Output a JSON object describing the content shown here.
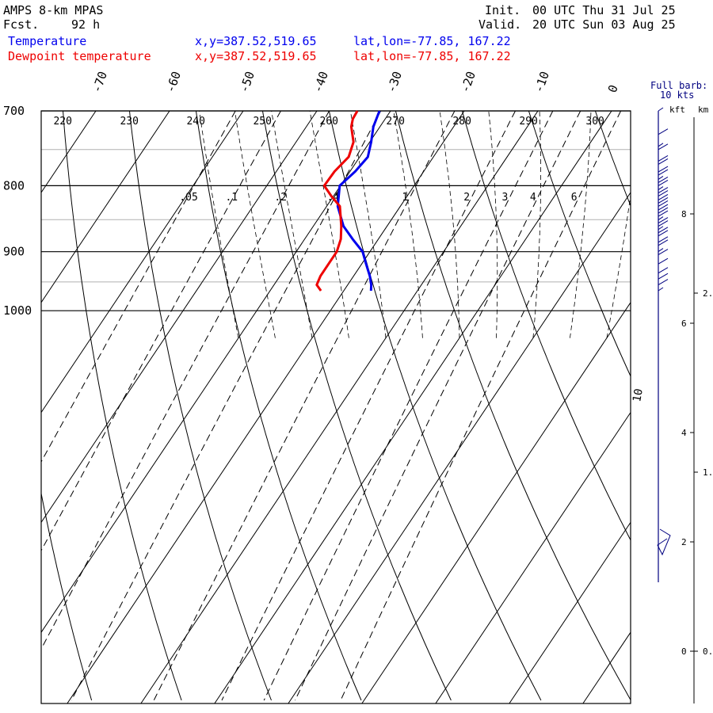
{
  "header": {
    "model": "AMPS 8-km MPAS",
    "fcst_label": "Fcst.",
    "fcst_value": "92 h",
    "init_label": "Init.",
    "init_value": "00 UTC Thu 31 Jul 25",
    "valid_label": "Valid.",
    "valid_value": "20 UTC Sun 03 Aug 25"
  },
  "colors": {
    "temperature": "#0000ee",
    "dewpoint": "#ee0000",
    "grid": "#000000",
    "minor_grid": "#b0b0b0"
  },
  "chart_data": {
    "type": "line",
    "chart_kind": "skew-T log-p sounding",
    "pressure_range_hpa": [
      700,
      1050
    ],
    "log_pressure": true,
    "isobar_labels": [
      "700",
      "800",
      "900",
      "1000"
    ],
    "isotherm_labels_c": [
      "-70",
      "-60",
      "-50",
      "-40",
      "-30",
      "-20",
      "-10",
      "0"
    ],
    "dry_adiabat_labels_k": [
      "220",
      "230",
      "240",
      "250",
      "260",
      "270",
      "280",
      "290",
      "300"
    ],
    "mixing_ratio_labels": [
      ".05",
      ".1",
      ".2",
      ".4",
      "1",
      "2",
      "3",
      "4",
      "6"
    ],
    "mixing_ratio_values_gkg": [
      0.05,
      0.1,
      0.2,
      0.4,
      1,
      2,
      3,
      4,
      6
    ],
    "pseudoadiabat_label": "10",
    "series": [
      {
        "name": "Temperature",
        "location_xy": "x,y=387.52,519.65",
        "location_latlon": "lat,lon=-77.85, 167.22",
        "p": [
          700,
          720,
          740,
          760,
          780,
          800,
          830,
          860,
          880,
          900,
          920,
          940,
          955,
          965
        ],
        "t": [
          -31.5,
          -30.9,
          -29.8,
          -28.9,
          -29.3,
          -30.1,
          -28.5,
          -25.9,
          -23.5,
          -21.0,
          -19.4,
          -17.8,
          -16.8,
          -16.3
        ]
      },
      {
        "name": "Dewpoint temperature",
        "location_xy": "x,y=387.52,519.65",
        "location_latlon": "lat,lon=-77.85, 167.22",
        "p": [
          700,
          710,
          720,
          740,
          760,
          780,
          800,
          815,
          830,
          860,
          880,
          900,
          920,
          940,
          955,
          965
        ],
        "t": [
          -34.5,
          -34.4,
          -33.9,
          -32.2,
          -31.5,
          -32.1,
          -32.2,
          -30.3,
          -28.2,
          -26.2,
          -25.1,
          -24.5,
          -24.5,
          -24.5,
          -24.2,
          -23.1
        ]
      }
    ],
    "wind_panel": {
      "legend_line1": "Full barb:",
      "legend_line2": "10 kts",
      "kft_label": "kft",
      "km_label": "km",
      "kft_labels": [
        "0",
        "2",
        "4",
        "6",
        "8"
      ],
      "kft_values": [
        0,
        2,
        4,
        6,
        8
      ],
      "km_labels": [
        "0.",
        "1.",
        "2."
      ],
      "km_values": [
        0,
        1,
        2
      ],
      "barbs": [
        {
          "p": 700,
          "speed_kt": 5
        },
        {
          "p": 730,
          "speed_kt": 10
        },
        {
          "p": 750,
          "speed_kt": 15
        },
        {
          "p": 770,
          "speed_kt": 20
        },
        {
          "p": 785,
          "speed_kt": 20
        },
        {
          "p": 800,
          "speed_kt": 25
        },
        {
          "p": 815,
          "speed_kt": 25
        },
        {
          "p": 830,
          "speed_kt": 30
        },
        {
          "p": 845,
          "speed_kt": 30
        },
        {
          "p": 860,
          "speed_kt": 25
        },
        {
          "p": 875,
          "speed_kt": 25
        },
        {
          "p": 890,
          "speed_kt": 20
        },
        {
          "p": 905,
          "speed_kt": 15
        },
        {
          "p": 920,
          "speed_kt": 10
        },
        {
          "p": 935,
          "speed_kt": 10
        },
        {
          "p": 945,
          "speed_kt": 10
        },
        {
          "p": 955,
          "speed_kt": 10
        },
        {
          "p": 965,
          "speed_kt": 5
        }
      ]
    }
  }
}
